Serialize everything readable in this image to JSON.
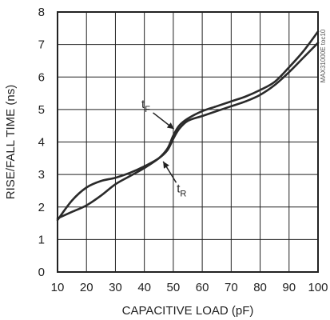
{
  "chart_data": {
    "type": "line",
    "title": "",
    "xlabel": "CAPACITIVE LOAD (pF)",
    "ylabel": "RISE/FALL TIME (ns)",
    "xlim": [
      10,
      100
    ],
    "ylim": [
      0,
      8
    ],
    "xticks": [
      10,
      20,
      30,
      40,
      50,
      60,
      70,
      80,
      90,
      100
    ],
    "yticks": [
      0,
      1,
      2,
      3,
      4,
      5,
      6,
      7,
      8
    ],
    "grid": true,
    "legend": "none",
    "series": [
      {
        "name": "tF",
        "label_main": "t",
        "label_sub": "F",
        "x": [
          10,
          15,
          20,
          25,
          30,
          35,
          40,
          45,
          48,
          50,
          52,
          55,
          60,
          65,
          70,
          75,
          80,
          85,
          90,
          95,
          100
        ],
        "y": [
          1.65,
          1.85,
          2.05,
          2.35,
          2.7,
          2.95,
          3.2,
          3.5,
          3.8,
          4.2,
          4.5,
          4.72,
          4.95,
          5.1,
          5.25,
          5.4,
          5.6,
          5.85,
          6.3,
          6.8,
          7.4
        ]
      },
      {
        "name": "tR",
        "label_main": "t",
        "label_sub": "R",
        "x": [
          10,
          15,
          20,
          25,
          30,
          35,
          40,
          45,
          48,
          50,
          52,
          55,
          60,
          65,
          70,
          75,
          80,
          85,
          90,
          95,
          100
        ],
        "y": [
          1.6,
          2.2,
          2.6,
          2.8,
          2.9,
          3.05,
          3.25,
          3.5,
          3.75,
          4.1,
          4.4,
          4.65,
          4.8,
          4.95,
          5.1,
          5.25,
          5.45,
          5.75,
          6.15,
          6.6,
          7.05
        ]
      }
    ],
    "watermark": "MAX3100 fc10",
    "annotation_text": "MAX31000E toc10"
  }
}
